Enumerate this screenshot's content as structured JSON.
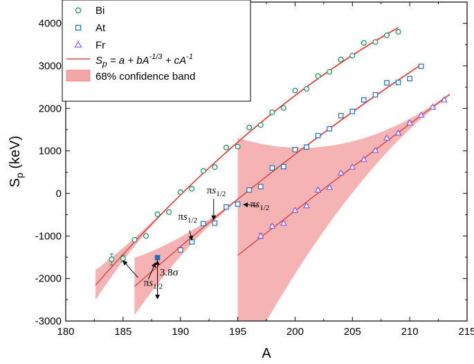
{
  "chart_data": {
    "type": "scatter",
    "xlabel": "A",
    "ylabel": "S",
    "ylabel_sub": "p",
    "ylabel_unit": " (keV)",
    "xlim": [
      180,
      215
    ],
    "ylim": [
      -3000,
      4500
    ],
    "xticks": [
      180,
      185,
      190,
      195,
      200,
      205,
      210,
      215
    ],
    "yticks": [
      -3000,
      -2000,
      -1000,
      0,
      1000,
      2000,
      3000,
      4000
    ],
    "colors": {
      "Bi": "#1a8a5a",
      "At": "#1f6fb5",
      "Fr": "#8a5ce6",
      "fit": "#d62728",
      "band": "#f4a6a6"
    },
    "legend": {
      "placement": "top-left",
      "entries": {
        "bi": "Bi",
        "at": "At",
        "fr": "Fr",
        "fit_lhs": "S",
        "fit_lhs_sub": "p",
        "fit_rhs_a": " = a + bA",
        "fit_rhs_exp1": "-1/3",
        "fit_rhs_b": " + cA",
        "fit_rhs_exp2": "-1",
        "band": "68% confidence band"
      }
    },
    "series": [
      {
        "name": "Bi",
        "marker": "circle",
        "x": [
          184,
          185,
          186,
          187,
          188,
          189,
          190,
          191,
          192,
          193,
          194,
          195,
          196,
          197,
          198,
          199,
          200,
          201,
          202,
          203,
          204,
          205,
          206,
          207,
          208,
          209
        ],
        "y": [
          -1550,
          -1530,
          -1090,
          -1000,
          -490,
          -440,
          30,
          110,
          530,
          620,
          1080,
          1100,
          1550,
          1610,
          1910,
          2010,
          2420,
          2460,
          2760,
          2860,
          3150,
          3240,
          3540,
          3560,
          3720,
          3800
        ],
        "err": [
          130,
          80,
          30,
          30,
          30,
          30,
          30,
          30,
          30,
          30,
          30,
          30,
          30,
          30,
          30,
          30,
          30,
          30,
          30,
          30,
          30,
          30,
          30,
          30,
          30,
          30
        ]
      },
      {
        "name": "At",
        "marker": "square",
        "x": [
          188,
          190,
          191,
          192,
          193,
          194,
          195,
          196,
          197,
          198,
          199,
          200,
          201,
          202,
          203,
          204,
          205,
          206,
          207,
          208,
          209,
          210,
          211
        ],
        "y": [
          -1510,
          -1330,
          -1140,
          -710,
          -700,
          -320,
          -250,
          80,
          160,
          600,
          630,
          1030,
          1090,
          1360,
          1520,
          1830,
          1930,
          2200,
          2320,
          2600,
          2610,
          2700,
          2990
        ],
        "err": [
          30,
          40,
          40,
          40,
          40,
          30,
          30,
          30,
          30,
          30,
          30,
          30,
          30,
          30,
          30,
          30,
          30,
          30,
          30,
          30,
          30,
          30,
          30
        ],
        "highlight_index": 0
      },
      {
        "name": "Fr",
        "marker": "triangle",
        "x": [
          197,
          198,
          199,
          200,
          201,
          202,
          203,
          204,
          205,
          206,
          207,
          208,
          209,
          210,
          211,
          212,
          213
        ],
        "y": [
          -1000,
          -770,
          -700,
          -400,
          -290,
          80,
          140,
          480,
          620,
          800,
          1010,
          1300,
          1420,
          1660,
          1840,
          2030,
          2200
        ],
        "err": [
          60,
          40,
          30,
          30,
          30,
          30,
          30,
          30,
          30,
          30,
          30,
          30,
          30,
          30,
          30,
          30,
          30
        ]
      }
    ],
    "fits": [
      {
        "name": "Bi",
        "x_range": [
          182.6,
          209
        ],
        "a": -5200.0,
        "b": 4.4966,
        "c": 1.0,
        "band_x": [
          182.6,
          189
        ]
      },
      {
        "name": "At",
        "x_range": [
          186.0,
          211
        ],
        "a": -8230.3,
        "b": 5.3008,
        "c": 1.0,
        "band_x": [
          186.0,
          195
        ]
      },
      {
        "name": "Fr",
        "x_range": [
          195.0,
          213.5
        ],
        "a": -11306.3,
        "b": 5.8333,
        "c": 1.0,
        "band_x": [
          213,
          213.5
        ]
      }
    ],
    "annotations": [
      {
        "pi": "π",
        "s": "s",
        "sub": "1/2",
        "x": 186.8,
        "y": -2180,
        "arrow_from": [
          186.3,
          -1980
        ],
        "arrow_to": [
          185.0,
          -1580
        ]
      },
      {
        "pi": "π",
        "s": "s",
        "sub": "1/2",
        "x": 189.8,
        "y": -620,
        "arrow_from": [
          190.8,
          -870
        ],
        "arrow_to": [
          191.0,
          -1100
        ]
      },
      {
        "pi": "π",
        "s": "s",
        "sub": "1/2",
        "x": 192.3,
        "y": 0,
        "arrow_from": [
          192.9,
          -130
        ],
        "arrow_to": [
          192.9,
          -620
        ]
      },
      {
        "pi": "π",
        "s": "s",
        "sub": "1/2",
        "x": 196.1,
        "y": -330,
        "arrow_from": [
          196.7,
          -290
        ],
        "arrow_to": [
          195.5,
          -260
        ]
      },
      {
        "text": "3.8σ",
        "x": 188.2,
        "y": -1930,
        "arrow_from": [
          188.0,
          -1580
        ],
        "arrow_to": [
          188.0,
          -2480
        ],
        "side_arrow_from": [
          187.2,
          -2020
        ],
        "side_arrow_to": [
          188.0,
          -1580
        ]
      }
    ]
  }
}
